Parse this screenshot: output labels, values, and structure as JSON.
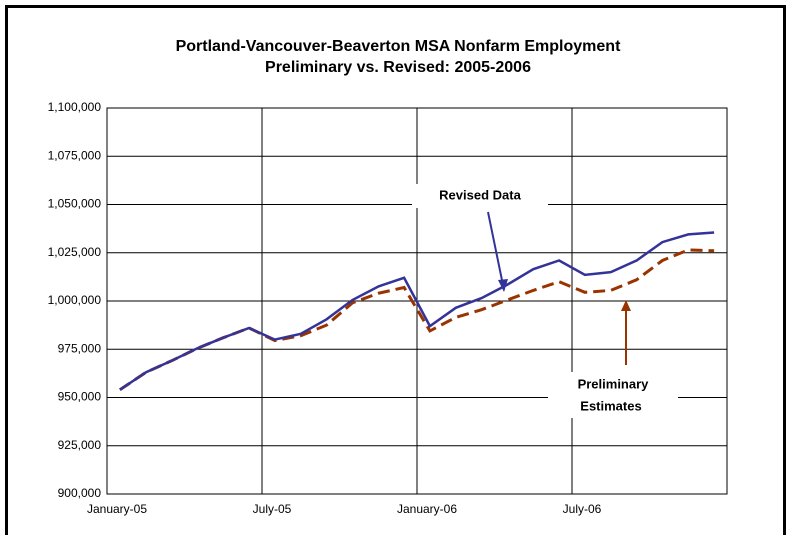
{
  "chart_data": {
    "type": "line",
    "title": "Portland-Vancouver-Beaverton MSA Nonfarm Employment",
    "subtitle": "Preliminary vs. Revised: 2005-2006",
    "categories": [
      "January-05",
      null,
      null,
      null,
      null,
      null,
      "July-05",
      null,
      null,
      null,
      null,
      null,
      "January-06",
      null,
      null,
      null,
      null,
      null,
      "July-06",
      null,
      null,
      null,
      null,
      null
    ],
    "series": [
      {
        "name": "Revised Data",
        "color": "#333399",
        "dashed": false,
        "values": [
          954000,
          963000,
          969000,
          975500,
          981000,
          986000,
          980000,
          983000,
          990500,
          1000500,
          1007500,
          1012000,
          987000,
          996500,
          1001500,
          1008500,
          1016500,
          1021000,
          1013500,
          1015000,
          1021000,
          1030500,
          1034500,
          1035500
        ]
      },
      {
        "name": "Preliminary Estimates",
        "color": "#993300",
        "dashed": true,
        "values": [
          954000,
          963000,
          969000,
          975500,
          981000,
          986000,
          979500,
          982000,
          987500,
          999000,
          1004000,
          1007000,
          984500,
          991500,
          995500,
          1000500,
          1005500,
          1010000,
          1004500,
          1005500,
          1011000,
          1021000,
          1026500,
          1026000
        ]
      }
    ],
    "annotations": [
      "Revised Data",
      "Preliminary",
      "Estimates"
    ],
    "ylim": [
      900000,
      1100000
    ],
    "yticks": [
      {
        "value": 900000,
        "label": "900,000"
      },
      {
        "value": 925000,
        "label": "925,000"
      },
      {
        "value": 950000,
        "label": "950,000"
      },
      {
        "value": 975000,
        "label": "975,000"
      },
      {
        "value": 1000000,
        "label": "1,000,000"
      },
      {
        "value": 1025000,
        "label": "1,025,000"
      },
      {
        "value": 1050000,
        "label": "1,050,000"
      },
      {
        "value": 1075000,
        "label": "1,075,000"
      },
      {
        "value": 1100000,
        "label": "1,100,000"
      }
    ],
    "grid": true
  }
}
